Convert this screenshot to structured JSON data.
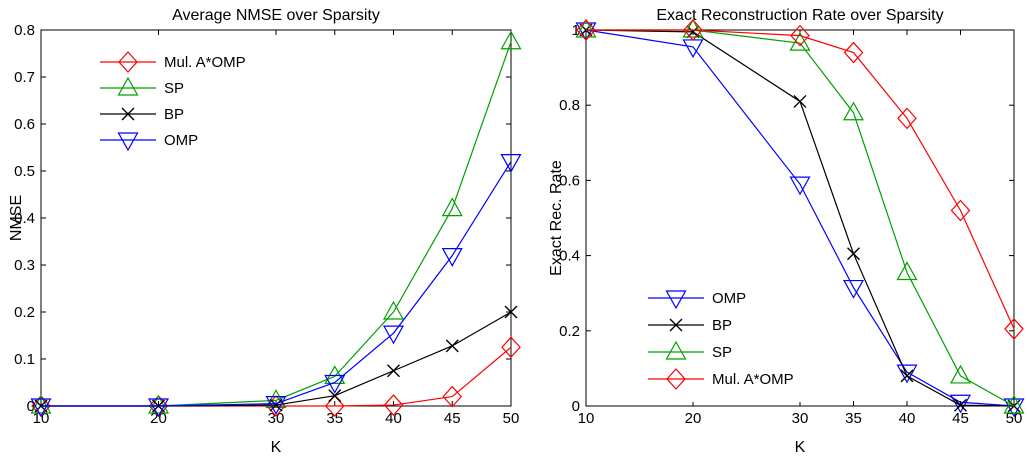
{
  "chart_data": [
    {
      "type": "line",
      "title": "Average NMSE over Sparsity",
      "xlabel": "K",
      "ylabel": "NMSE",
      "x": [
        10,
        20,
        30,
        35,
        40,
        45,
        50
      ],
      "xlim": [
        10,
        50
      ],
      "ylim": [
        0,
        0.8
      ],
      "xticks": [
        10,
        20,
        30,
        35,
        40,
        45,
        50
      ],
      "yticks": [
        0,
        0.1,
        0.2,
        0.3,
        0.4,
        0.5,
        0.6,
        0.7,
        0.8
      ],
      "ytick_labels": [
        "0",
        "0.1",
        "0.2",
        "0.3",
        "0.4",
        "0.5",
        "0.6",
        "0.7",
        "0.8"
      ],
      "grid": false,
      "legend_position": "top-left",
      "series": [
        {
          "name": "Mul. A*OMP",
          "color": "#ff0000",
          "marker": "diamond",
          "values": [
            0,
            0,
            0,
            0,
            0.002,
            0.02,
            0.125
          ]
        },
        {
          "name": "SP",
          "color": "#00a000",
          "marker": "triangle-up",
          "values": [
            0,
            0,
            0.012,
            0.063,
            0.2,
            0.42,
            0.775
          ]
        },
        {
          "name": "BP",
          "color": "#000000",
          "marker": "x",
          "values": [
            0,
            0,
            0.002,
            0.022,
            0.075,
            0.128,
            0.2
          ]
        },
        {
          "name": "OMP",
          "color": "#0000ff",
          "marker": "triangle-down",
          "values": [
            0,
            0,
            0.005,
            0.05,
            0.155,
            0.32,
            0.52
          ]
        }
      ]
    },
    {
      "type": "line",
      "title": "Exact Reconstruction Rate over Sparsity",
      "xlabel": "K",
      "ylabel": "Exact Rec. Rate",
      "x": [
        10,
        20,
        30,
        35,
        40,
        45,
        50
      ],
      "xlim": [
        10,
        50
      ],
      "ylim": [
        0,
        1
      ],
      "xticks": [
        10,
        20,
        30,
        35,
        40,
        45,
        50
      ],
      "yticks": [
        0,
        0.2,
        0.4,
        0.6,
        0.8,
        1
      ],
      "ytick_labels": [
        "0",
        "0.2",
        "0.4",
        "0.6",
        "0.8",
        "1"
      ],
      "grid": false,
      "legend_position": "bottom-left",
      "series": [
        {
          "name": "OMP",
          "color": "#0000ff",
          "marker": "triangle-down",
          "values": [
            1,
            0.955,
            0.59,
            0.315,
            0.09,
            0.01,
            0
          ]
        },
        {
          "name": "BP",
          "color": "#000000",
          "marker": "x",
          "values": [
            1,
            0.995,
            0.81,
            0.405,
            0.08,
            0.002,
            0
          ]
        },
        {
          "name": "SP",
          "color": "#00a000",
          "marker": "triangle-up",
          "values": [
            1,
            1,
            0.965,
            0.78,
            0.355,
            0.08,
            0
          ]
        },
        {
          "name": "Mul. A*OMP",
          "color": "#ff0000",
          "marker": "diamond",
          "values": [
            1,
            1,
            0.985,
            0.94,
            0.765,
            0.52,
            0.205
          ]
        }
      ]
    }
  ]
}
